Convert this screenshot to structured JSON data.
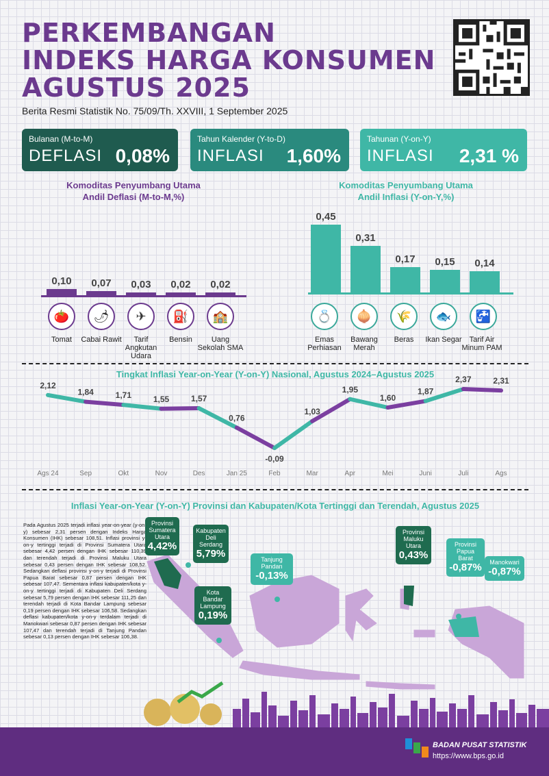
{
  "header": {
    "title_lines": [
      "PERKEMBANGAN",
      "INDEKS HARGA KONSUMEN",
      "AGUSTUS 2025"
    ],
    "subtitle": "Berita Resmi Statistik No. 75/09/Th. XXVIII, 1 September 2025"
  },
  "cards": [
    {
      "label": "Bulanan (M-to-M)",
      "kind": "DEFLASI",
      "value": "0,08%",
      "color": "#1f5b4f"
    },
    {
      "label": "Tahun Kalender (Y-to-D)",
      "kind": "INFLASI",
      "value": "1,60%",
      "color": "#2a8a7e"
    },
    {
      "label": "Tahunan (Y-on-Y)",
      "kind": "INFLASI",
      "value": "2,31 %",
      "color": "#3fb7a6"
    }
  ],
  "deflasi_section": {
    "title_line1": "Komoditas Penyumbang Utama",
    "title_line2": "Andil Deflasi (M-to-M,%)"
  },
  "inflasi_section": {
    "title_line1": "Komoditas Penyumbang Utama",
    "title_line2": "Andil Inflasi (Y-on-Y,%)"
  },
  "line_section": {
    "title": "Tingkat Inflasi Year-on-Year (Y-on-Y) Nasional, Agustus 2024–Agustus 2025"
  },
  "map_section": {
    "title": "Inflasi Year-on-Year (Y-on-Y) Provinsi dan Kabupaten/Kota Tertinggi dan Terendah, Agustus 2025",
    "paragraph": "Pada Agustus 2025 terjadi inflasi year-on-year (y-on-y) sebesar 2,31 persen dengan Indeks Harga Konsumen (IHK) sebesar 108,51. Inflasi provinsi y-on-y tertinggi terjadi di Provinsi Sumatera Utara sebesar 4,42 persen dengan IHK sebesar 110,39 dan terendah terjadi di Provinsi Maluku Utara sebesar 0,43 persen dengan IHK sebesar 108,52. Sedangkan deflasi provinsi y-on-y terjadi di Provinsi Papua Barat sebesar 0,87 persen dengan IHK sebesar 107,47. Sementara inflasi kabupaten/kota y-on-y tertinggi terjadi di Kabupaten Deli Serdang sebesar 5,79 persen dengan IHK sebesar 111,25 dan terendah terjadi di Kota Bandar Lampung sebesar 0,19 persen dengan IHK sebesar 106,58. Sedangkan deflasi kabupaten/kota y-on-y terdalam terjadi di Manokwari sebesar 0,87 persen dengan IHK sebesar 107,47 dan terendah terjadi di Tanjung Pandan sebesar 0,13 persen dengan IHK sebesar 106,38.",
    "callouts": [
      {
        "name": "Provinsi Sumatera Utara",
        "value": "4,42%",
        "color": "#1f6b4f"
      },
      {
        "name": "Kabupaten Deli Serdang",
        "value": "5,79%",
        "color": "#1f6b4f"
      },
      {
        "name": "Tanjung Pandan",
        "value": "-0,13%",
        "color": "#3fb7a6"
      },
      {
        "name": "Kota Bandar Lampung",
        "value": "0,19%",
        "color": "#1f6b4f"
      },
      {
        "name": "Provinsi Maluku Utara",
        "value": "0,43%",
        "color": "#1f6b4f"
      },
      {
        "name": "Provinsi Papua Barat",
        "value": "-0,87%",
        "color": "#3fb7a6"
      },
      {
        "name": "Manokwari",
        "value": "-0,87%",
        "color": "#3fb7a6"
      }
    ]
  },
  "footer": {
    "org": "BADAN PUSAT STATISTIK",
    "url": "https://www.bps.go.id"
  },
  "chart_data": [
    {
      "type": "bar",
      "categories": [
        "Tomat",
        "Cabai Rawit",
        "Tarif Angkutan Udara",
        "Bensin",
        "Uang Sekolah SMA"
      ],
      "values": [
        0.1,
        0.07,
        0.03,
        0.02,
        0.02
      ],
      "labels": [
        "0,10",
        "0,07",
        "0,03",
        "0,02",
        "0,02"
      ],
      "color": "#6b3a8e"
    },
    {
      "type": "bar",
      "categories": [
        "Emas Perhiasan",
        "Bawang Merah",
        "Beras",
        "Ikan Segar",
        "Tarif Air Minum PAM"
      ],
      "values": [
        0.45,
        0.31,
        0.17,
        0.15,
        0.14
      ],
      "labels": [
        "0,45",
        "0,31",
        "0,17",
        "0,15",
        "0,14"
      ],
      "color": "#3fb7a6"
    },
    {
      "type": "line",
      "categories": [
        "Ags 24",
        "Sep",
        "Okt",
        "Nov",
        "Des",
        "Jan 25",
        "Feb",
        "Mar",
        "Apr",
        "Mei",
        "Juni",
        "Juli",
        "Ags"
      ],
      "values": [
        2.12,
        1.84,
        1.71,
        1.55,
        1.57,
        0.76,
        -0.09,
        1.03,
        1.95,
        1.6,
        1.87,
        2.37,
        2.31
      ],
      "labels": [
        "2,12",
        "1,84",
        "1,71",
        "1,55",
        "1,57",
        "0,76",
        "-0,09",
        "1,03",
        "1,95",
        "1,60",
        "1,87",
        "2,37",
        "2,31"
      ],
      "colors": [
        "#3fb7a6",
        "#7b3fa0"
      ]
    }
  ]
}
